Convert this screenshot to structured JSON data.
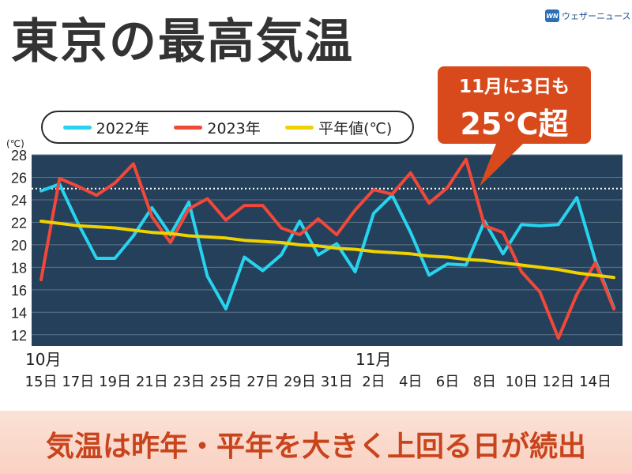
{
  "header": {
    "title": "東京の最高気温",
    "logo_mark": "WN",
    "logo_text": "ウェザーニュース"
  },
  "legend": [
    {
      "label": "2022年",
      "color": "#27d3ee"
    },
    {
      "label": "2023年",
      "color": "#f2483a"
    },
    {
      "label": "平年値(℃)",
      "color": "#f0d200"
    }
  ],
  "callout": {
    "line1": "11月に3日も",
    "line2": "25℃超"
  },
  "footer": {
    "text": "気温は昨年・平年を大きく上回る日が続出"
  },
  "colors": {
    "plot_bg": "#24405a",
    "grid": "#5f7488",
    "threshold": "#ffffff",
    "accent": "#d84a1b"
  },
  "chart_data": {
    "type": "line",
    "title": "東京の最高気温",
    "ylabel": "(℃)",
    "ylim": [
      11,
      28
    ],
    "yticks": [
      12,
      14,
      16,
      18,
      20,
      22,
      24,
      26,
      28
    ],
    "threshold": 25,
    "grid": true,
    "legend_position": "top-left",
    "x": [
      "10/15",
      "10/16",
      "10/17",
      "10/18",
      "10/19",
      "10/20",
      "10/21",
      "10/22",
      "10/23",
      "10/24",
      "10/25",
      "10/26",
      "10/27",
      "10/28",
      "10/29",
      "10/30",
      "10/31",
      "11/1",
      "11/2",
      "11/3",
      "11/4",
      "11/5",
      "11/6",
      "11/7",
      "11/8",
      "11/9",
      "11/10",
      "11/11",
      "11/12",
      "11/13",
      "11/14",
      "11/15"
    ],
    "xtick_labels": [
      "15日",
      "17日",
      "19日",
      "21日",
      "23日",
      "25日",
      "27日",
      "29日",
      "31日",
      "2日",
      "4日",
      "6日",
      "8日",
      "10日",
      "12日",
      "14日"
    ],
    "month_labels": [
      "10月",
      "11月"
    ],
    "series": [
      {
        "name": "2022年",
        "color": "#27d3ee",
        "values": [
          24.8,
          25.4,
          21.9,
          18.8,
          18.8,
          20.8,
          23.3,
          20.9,
          23.8,
          17.2,
          14.3,
          18.9,
          17.7,
          19.1,
          22.1,
          19.1,
          20.1,
          17.6,
          22.8,
          24.4,
          21.1,
          17.3,
          18.3,
          18.2,
          22.1,
          19.2,
          21.8,
          21.7,
          21.8,
          24.2,
          18.6,
          14.4
        ]
      },
      {
        "name": "2023年",
        "color": "#f2483a",
        "values": [
          16.9,
          25.9,
          25.2,
          24.4,
          25.5,
          27.2,
          22.5,
          20.2,
          23.2,
          24.1,
          22.2,
          23.5,
          23.5,
          21.5,
          20.9,
          22.3,
          20.9,
          23.1,
          24.9,
          24.5,
          26.4,
          23.7,
          25.1,
          27.6,
          21.7,
          21.1,
          17.6,
          15.8,
          11.7,
          15.6,
          18.4,
          14.3
        ]
      },
      {
        "name": "平年値(℃)",
        "color": "#f0d200",
        "values": [
          22.1,
          21.9,
          21.7,
          21.6,
          21.5,
          21.3,
          21.1,
          21.0,
          20.8,
          20.7,
          20.6,
          20.4,
          20.3,
          20.2,
          20.0,
          19.9,
          19.7,
          19.6,
          19.4,
          19.3,
          19.2,
          19.0,
          18.9,
          18.7,
          18.6,
          18.4,
          18.2,
          18.0,
          17.8,
          17.5,
          17.3,
          17.1
        ]
      }
    ]
  }
}
